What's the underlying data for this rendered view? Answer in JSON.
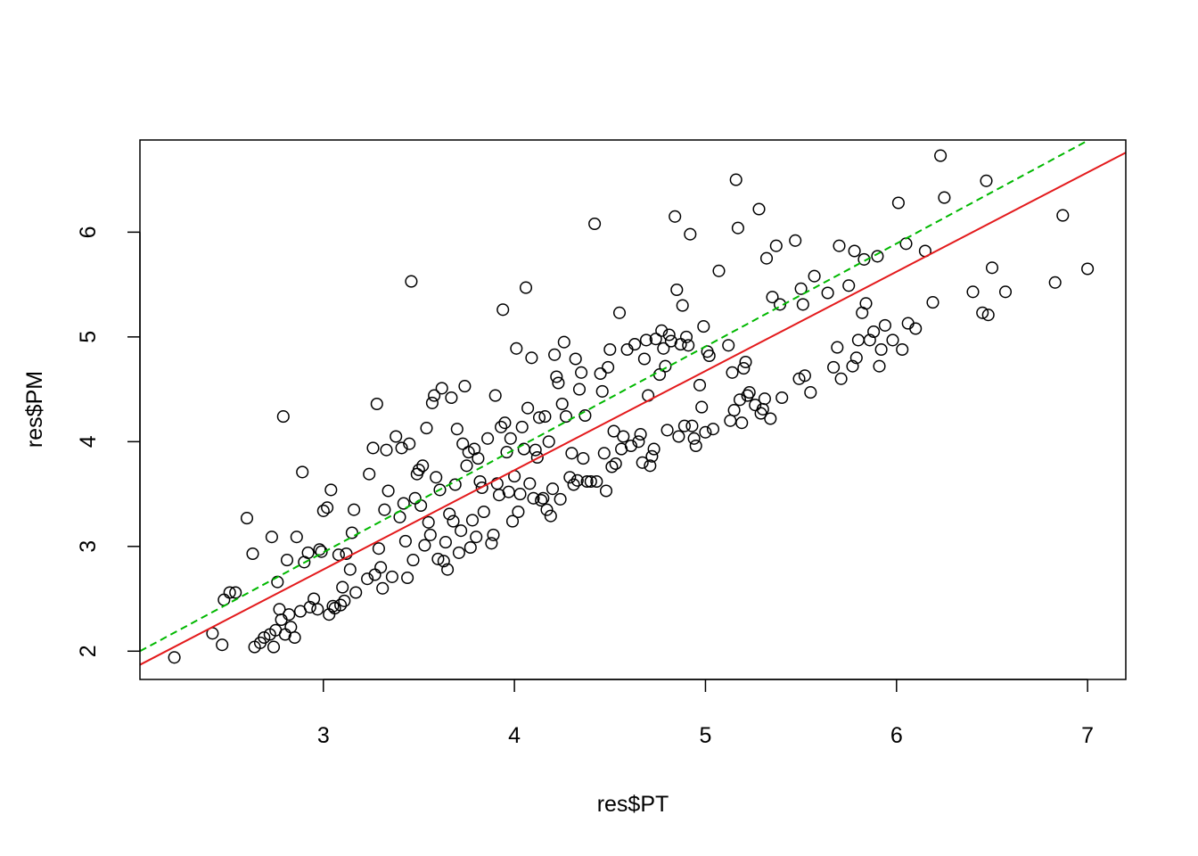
{
  "chart_data": {
    "type": "scatter",
    "title": "",
    "xlabel": "res$PT",
    "ylabel": "res$PM",
    "xlim": [
      2.04,
      7.2
    ],
    "ylim": [
      1.73,
      6.88
    ],
    "x_ticks": [
      3,
      4,
      5,
      6,
      7
    ],
    "y_ticks": [
      2,
      3,
      4,
      5,
      6
    ],
    "grid": false,
    "legend": "none",
    "point_style": "open circle",
    "colors": {
      "points": "#000000",
      "fit_line": "#e31a1c",
      "identity_line": "#00b800"
    },
    "lines": [
      {
        "style": "dashed",
        "color": "#00b800",
        "x": [
          2.04,
          7.2
        ],
        "y": [
          2.0,
          7.07
        ]
      },
      {
        "style": "solid",
        "color": "#e31a1c",
        "x": [
          2.04,
          7.2
        ],
        "y": [
          1.87,
          6.76
        ]
      }
    ],
    "points": [
      [
        2.22,
        1.94
      ],
      [
        2.42,
        2.17
      ],
      [
        2.47,
        2.06
      ],
      [
        2.48,
        2.49
      ],
      [
        2.51,
        2.56
      ],
      [
        2.54,
        2.56
      ],
      [
        2.6,
        3.27
      ],
      [
        2.63,
        2.93
      ],
      [
        2.64,
        2.04
      ],
      [
        2.67,
        2.08
      ],
      [
        2.69,
        2.13
      ],
      [
        2.72,
        2.16
      ],
      [
        2.73,
        3.09
      ],
      [
        2.74,
        2.04
      ],
      [
        2.75,
        2.2
      ],
      [
        2.76,
        2.66
      ],
      [
        2.77,
        2.4
      ],
      [
        2.78,
        2.3
      ],
      [
        2.79,
        4.24
      ],
      [
        2.8,
        2.16
      ],
      [
        2.81,
        2.87
      ],
      [
        2.82,
        2.35
      ],
      [
        2.83,
        2.23
      ],
      [
        2.85,
        2.13
      ],
      [
        2.86,
        3.09
      ],
      [
        2.88,
        2.38
      ],
      [
        2.89,
        3.71
      ],
      [
        2.9,
        2.85
      ],
      [
        2.92,
        2.94
      ],
      [
        2.93,
        2.42
      ],
      [
        2.95,
        2.5
      ],
      [
        2.97,
        2.4
      ],
      [
        2.98,
        2.97
      ],
      [
        2.99,
        2.95
      ],
      [
        3.0,
        3.34
      ],
      [
        3.02,
        3.37
      ],
      [
        3.03,
        2.35
      ],
      [
        3.04,
        3.54
      ],
      [
        3.05,
        2.43
      ],
      [
        3.06,
        2.41
      ],
      [
        3.08,
        2.92
      ],
      [
        3.09,
        2.44
      ],
      [
        3.1,
        2.61
      ],
      [
        3.11,
        2.48
      ],
      [
        3.12,
        2.93
      ],
      [
        3.14,
        2.78
      ],
      [
        3.15,
        3.13
      ],
      [
        3.16,
        3.35
      ],
      [
        3.17,
        2.56
      ],
      [
        3.23,
        2.69
      ],
      [
        3.24,
        3.69
      ],
      [
        3.26,
        3.94
      ],
      [
        3.27,
        2.73
      ],
      [
        3.28,
        4.36
      ],
      [
        3.29,
        2.98
      ],
      [
        3.3,
        2.8
      ],
      [
        3.31,
        2.6
      ],
      [
        3.32,
        3.35
      ],
      [
        3.33,
        3.92
      ],
      [
        3.34,
        3.53
      ],
      [
        3.36,
        2.71
      ],
      [
        3.38,
        4.05
      ],
      [
        3.4,
        3.28
      ],
      [
        3.41,
        3.94
      ],
      [
        3.42,
        3.41
      ],
      [
        3.43,
        3.05
      ],
      [
        3.44,
        2.7
      ],
      [
        3.45,
        3.98
      ],
      [
        3.46,
        5.53
      ],
      [
        3.47,
        2.87
      ],
      [
        3.48,
        3.46
      ],
      [
        3.49,
        3.69
      ],
      [
        3.5,
        3.73
      ],
      [
        3.51,
        3.39
      ],
      [
        3.52,
        3.77
      ],
      [
        3.53,
        3.01
      ],
      [
        3.54,
        4.13
      ],
      [
        3.55,
        3.23
      ],
      [
        3.56,
        3.11
      ],
      [
        3.57,
        4.37
      ],
      [
        3.58,
        4.44
      ],
      [
        3.59,
        3.66
      ],
      [
        3.6,
        2.88
      ],
      [
        3.61,
        3.54
      ],
      [
        3.62,
        4.51
      ],
      [
        3.63,
        2.86
      ],
      [
        3.64,
        3.04
      ],
      [
        3.65,
        2.78
      ],
      [
        3.66,
        3.31
      ],
      [
        3.67,
        4.42
      ],
      [
        3.68,
        3.24
      ],
      [
        3.69,
        3.59
      ],
      [
        3.7,
        4.12
      ],
      [
        3.71,
        2.94
      ],
      [
        3.72,
        3.15
      ],
      [
        3.73,
        3.98
      ],
      [
        3.74,
        4.53
      ],
      [
        3.75,
        3.77
      ],
      [
        3.76,
        3.9
      ],
      [
        3.77,
        2.99
      ],
      [
        3.78,
        3.25
      ],
      [
        3.79,
        3.93
      ],
      [
        3.8,
        3.09
      ],
      [
        3.81,
        3.84
      ],
      [
        3.82,
        3.62
      ],
      [
        3.83,
        3.56
      ],
      [
        3.84,
        3.33
      ],
      [
        3.86,
        4.03
      ],
      [
        3.88,
        3.03
      ],
      [
        3.89,
        3.11
      ],
      [
        3.9,
        4.44
      ],
      [
        3.91,
        3.6
      ],
      [
        3.92,
        3.49
      ],
      [
        3.93,
        4.14
      ],
      [
        3.94,
        5.26
      ],
      [
        3.95,
        4.18
      ],
      [
        3.96,
        3.9
      ],
      [
        3.97,
        3.52
      ],
      [
        3.98,
        4.03
      ],
      [
        3.99,
        3.24
      ],
      [
        4.0,
        3.67
      ],
      [
        4.01,
        4.89
      ],
      [
        4.02,
        3.33
      ],
      [
        4.03,
        3.5
      ],
      [
        4.04,
        4.14
      ],
      [
        4.05,
        3.93
      ],
      [
        4.06,
        5.47
      ],
      [
        4.07,
        4.32
      ],
      [
        4.08,
        3.6
      ],
      [
        4.09,
        4.8
      ],
      [
        4.1,
        3.46
      ],
      [
        4.11,
        3.92
      ],
      [
        4.12,
        3.85
      ],
      [
        4.13,
        4.23
      ],
      [
        4.14,
        3.44
      ],
      [
        4.15,
        3.46
      ],
      [
        4.16,
        4.24
      ],
      [
        4.17,
        3.35
      ],
      [
        4.18,
        4.0
      ],
      [
        4.19,
        3.29
      ],
      [
        4.2,
        3.55
      ],
      [
        4.21,
        4.83
      ],
      [
        4.22,
        4.62
      ],
      [
        4.23,
        4.56
      ],
      [
        4.24,
        3.45
      ],
      [
        4.25,
        4.36
      ],
      [
        4.26,
        4.95
      ],
      [
        4.27,
        4.24
      ],
      [
        4.29,
        3.66
      ],
      [
        4.3,
        3.89
      ],
      [
        4.31,
        3.59
      ],
      [
        4.32,
        4.79
      ],
      [
        4.33,
        3.63
      ],
      [
        4.34,
        4.5
      ],
      [
        4.35,
        4.66
      ],
      [
        4.36,
        3.84
      ],
      [
        4.37,
        4.25
      ],
      [
        4.38,
        3.62
      ],
      [
        4.4,
        3.62
      ],
      [
        4.42,
        6.08
      ],
      [
        4.43,
        3.62
      ],
      [
        4.45,
        4.65
      ],
      [
        4.46,
        4.48
      ],
      [
        4.47,
        3.89
      ],
      [
        4.48,
        3.53
      ],
      [
        4.49,
        4.71
      ],
      [
        4.5,
        4.88
      ],
      [
        4.51,
        3.76
      ],
      [
        4.52,
        4.1
      ],
      [
        4.53,
        3.79
      ],
      [
        4.55,
        5.23
      ],
      [
        4.56,
        3.93
      ],
      [
        4.57,
        4.05
      ],
      [
        4.59,
        4.88
      ],
      [
        4.61,
        3.96
      ],
      [
        4.63,
        4.93
      ],
      [
        4.65,
        4.0
      ],
      [
        4.66,
        4.07
      ],
      [
        4.67,
        3.8
      ],
      [
        4.68,
        4.79
      ],
      [
        4.69,
        4.97
      ],
      [
        4.7,
        4.44
      ],
      [
        4.71,
        3.77
      ],
      [
        4.72,
        3.86
      ],
      [
        4.73,
        3.93
      ],
      [
        4.74,
        4.98
      ],
      [
        4.76,
        4.64
      ],
      [
        4.77,
        5.06
      ],
      [
        4.78,
        4.89
      ],
      [
        4.79,
        4.72
      ],
      [
        4.8,
        4.11
      ],
      [
        4.81,
        5.02
      ],
      [
        4.82,
        4.96
      ],
      [
        4.84,
        6.15
      ],
      [
        4.85,
        5.45
      ],
      [
        4.86,
        4.05
      ],
      [
        4.87,
        4.93
      ],
      [
        4.88,
        5.3
      ],
      [
        4.89,
        4.15
      ],
      [
        4.9,
        5.0
      ],
      [
        4.91,
        4.92
      ],
      [
        4.92,
        5.98
      ],
      [
        4.93,
        4.15
      ],
      [
        4.94,
        4.03
      ],
      [
        4.95,
        3.96
      ],
      [
        4.97,
        4.54
      ],
      [
        4.98,
        4.33
      ],
      [
        4.99,
        5.1
      ],
      [
        5.0,
        4.09
      ],
      [
        5.01,
        4.86
      ],
      [
        5.02,
        4.82
      ],
      [
        5.04,
        4.12
      ],
      [
        5.07,
        5.63
      ],
      [
        5.12,
        4.92
      ],
      [
        5.13,
        4.2
      ],
      [
        5.14,
        4.66
      ],
      [
        5.15,
        4.3
      ],
      [
        5.16,
        6.5
      ],
      [
        5.17,
        6.04
      ],
      [
        5.18,
        4.4
      ],
      [
        5.19,
        4.18
      ],
      [
        5.2,
        4.7
      ],
      [
        5.21,
        4.76
      ],
      [
        5.22,
        4.44
      ],
      [
        5.23,
        4.47
      ],
      [
        5.26,
        4.35
      ],
      [
        5.28,
        6.22
      ],
      [
        5.29,
        4.27
      ],
      [
        5.3,
        4.31
      ],
      [
        5.31,
        4.41
      ],
      [
        5.32,
        5.75
      ],
      [
        5.34,
        4.22
      ],
      [
        5.35,
        5.38
      ],
      [
        5.37,
        5.87
      ],
      [
        5.39,
        5.31
      ],
      [
        5.4,
        4.42
      ],
      [
        5.47,
        5.92
      ],
      [
        5.49,
        4.6
      ],
      [
        5.5,
        5.46
      ],
      [
        5.51,
        5.31
      ],
      [
        5.52,
        4.63
      ],
      [
        5.55,
        4.47
      ],
      [
        5.57,
        5.58
      ],
      [
        5.64,
        5.42
      ],
      [
        5.67,
        4.71
      ],
      [
        5.69,
        4.9
      ],
      [
        5.7,
        5.87
      ],
      [
        5.71,
        4.6
      ],
      [
        5.75,
        5.49
      ],
      [
        5.77,
        4.72
      ],
      [
        5.78,
        5.82
      ],
      [
        5.79,
        4.8
      ],
      [
        5.8,
        4.97
      ],
      [
        5.82,
        5.23
      ],
      [
        5.83,
        5.74
      ],
      [
        5.84,
        5.32
      ],
      [
        5.86,
        4.97
      ],
      [
        5.88,
        5.05
      ],
      [
        5.9,
        5.77
      ],
      [
        5.91,
        4.72
      ],
      [
        5.92,
        4.88
      ],
      [
        5.94,
        5.11
      ],
      [
        5.98,
        4.97
      ],
      [
        6.01,
        6.28
      ],
      [
        6.03,
        4.88
      ],
      [
        6.05,
        5.89
      ],
      [
        6.06,
        5.13
      ],
      [
        6.1,
        5.08
      ],
      [
        6.15,
        5.82
      ],
      [
        6.19,
        5.33
      ],
      [
        6.23,
        6.73
      ],
      [
        6.25,
        6.33
      ],
      [
        6.4,
        5.43
      ],
      [
        6.45,
        5.23
      ],
      [
        6.47,
        6.49
      ],
      [
        6.48,
        5.21
      ],
      [
        6.5,
        5.66
      ],
      [
        6.57,
        5.43
      ],
      [
        6.83,
        5.52
      ],
      [
        6.87,
        6.16
      ],
      [
        7.0,
        5.65
      ]
    ]
  }
}
